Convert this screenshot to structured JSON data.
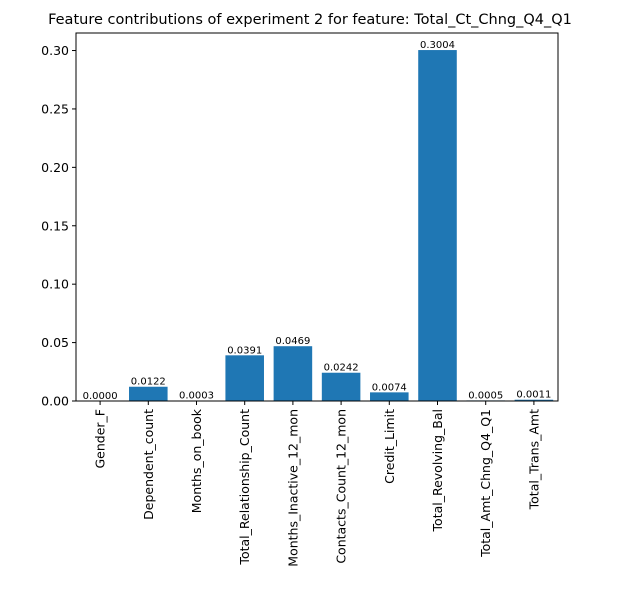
{
  "chart_data": {
    "type": "bar",
    "title": "Feature contributions of experiment 2 for feature: Total_Ct_Chng_Q4_Q1",
    "xlabel": "",
    "ylabel": "",
    "categories": [
      "Gender_F",
      "Dependent_count",
      "Months_on_book",
      "Total_Relationship_Count",
      "Months_Inactive_12_mon",
      "Contacts_Count_12_mon",
      "Credit_Limit",
      "Total_Revolving_Bal",
      "Total_Amt_Chng_Q4_Q1",
      "Total_Trans_Amt"
    ],
    "values": [
      0.0,
      0.0122,
      0.0003,
      0.0391,
      0.0469,
      0.0242,
      0.0074,
      0.3004,
      0.0005,
      0.0011
    ],
    "data_labels": [
      "0.0000",
      "0.0122",
      "0.0003",
      "0.0391",
      "0.0469",
      "0.0242",
      "0.0074",
      "0.3004",
      "0.0005",
      "0.0011"
    ],
    "ylim": [
      0,
      0.315
    ],
    "yticks": [
      0.0,
      0.05,
      0.1,
      0.15,
      0.2,
      0.25,
      0.3
    ],
    "ytick_labels": [
      "0.00",
      "0.05",
      "0.10",
      "0.15",
      "0.20",
      "0.25",
      "0.30"
    ],
    "grid": false,
    "bar_color": "#1f77b4"
  }
}
